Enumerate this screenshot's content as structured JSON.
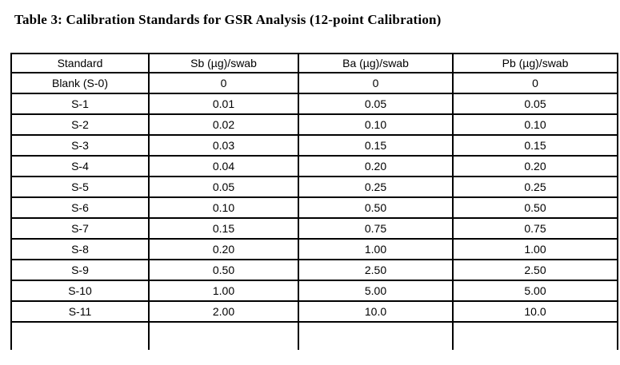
{
  "title": "Table 3: Calibration Standards for GSR Analysis (12-point Calibration)",
  "table": {
    "headers": [
      "Standard",
      "Sb (µg)/swab",
      "Ba (µg)/swab",
      "Pb (µg)/swab"
    ],
    "rows": [
      [
        "Blank (S-0)",
        "0",
        "0",
        "0"
      ],
      [
        "S-1",
        "0.01",
        "0.05",
        "0.05"
      ],
      [
        "S-2",
        "0.02",
        "0.10",
        "0.10"
      ],
      [
        "S-3",
        "0.03",
        "0.15",
        "0.15"
      ],
      [
        "S-4",
        "0.04",
        "0.20",
        "0.20"
      ],
      [
        "S-5",
        "0.05",
        "0.25",
        "0.25"
      ],
      [
        "S-6",
        "0.10",
        "0.50",
        "0.50"
      ],
      [
        "S-7",
        "0.15",
        "0.75",
        "0.75"
      ],
      [
        "S-8",
        "0.20",
        "1.00",
        "1.00"
      ],
      [
        "S-9",
        "0.50",
        "2.50",
        "2.50"
      ],
      [
        "S-10",
        "1.00",
        "5.00",
        "5.00"
      ],
      [
        "S-11",
        "2.00",
        "10.0",
        "10.0"
      ]
    ]
  },
  "colors": {
    "text": "#000000",
    "border": "#000000",
    "background": "#ffffff"
  }
}
